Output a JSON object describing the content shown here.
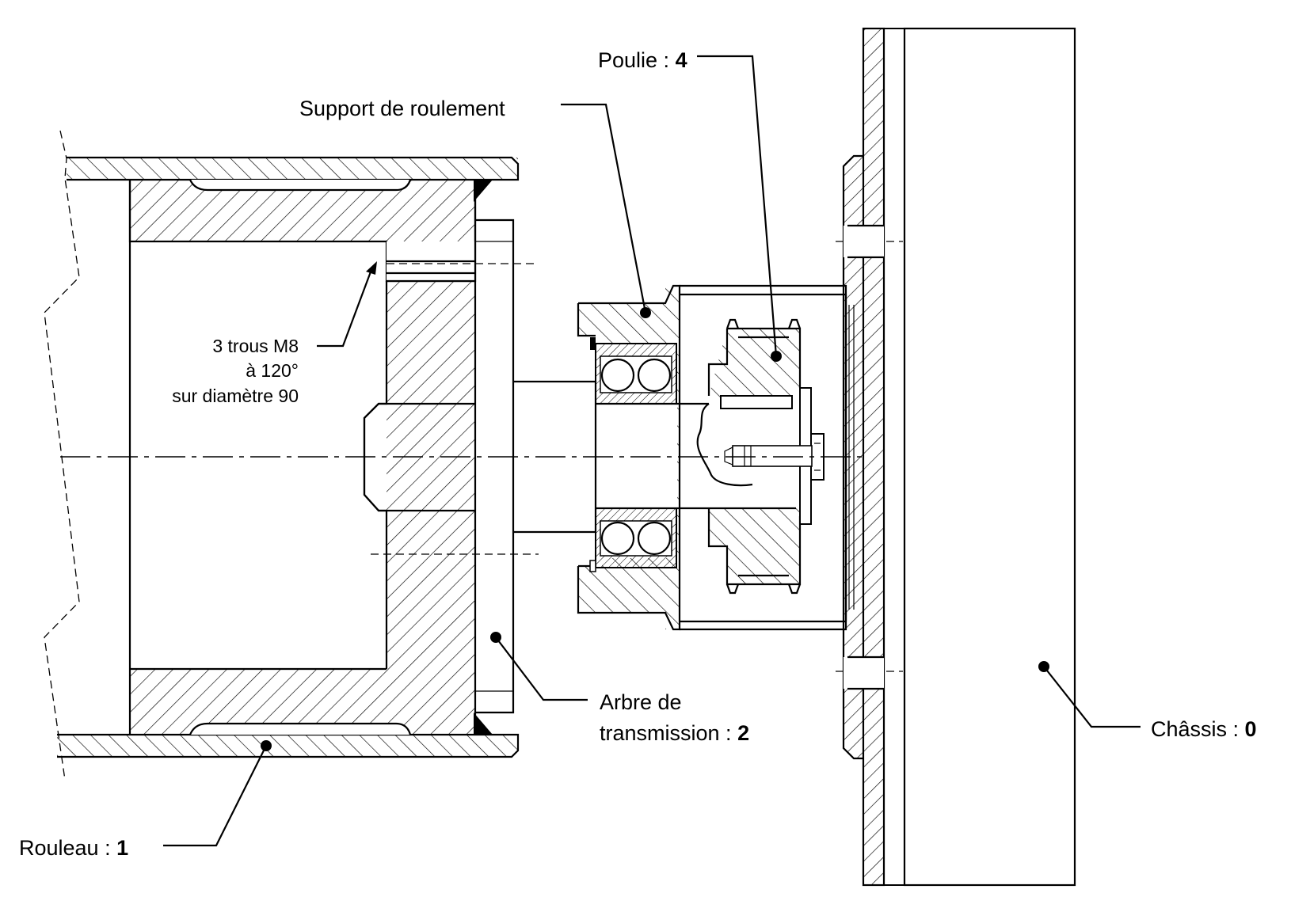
{
  "labels": {
    "poulie": {
      "text": "Poulie : ",
      "num": "4"
    },
    "support": {
      "text": "Support de roulement"
    },
    "trous": {
      "line1": "3 trous M8",
      "line2": "à 120°",
      "line3": "sur diamètre 90"
    },
    "arbre": {
      "line1": "Arbre de",
      "line2": "transmission : ",
      "num": "2"
    },
    "chassis": {
      "text": "Châssis : ",
      "num": "0"
    },
    "rouleau": {
      "text": "Rouleau : ",
      "num": "1"
    }
  }
}
